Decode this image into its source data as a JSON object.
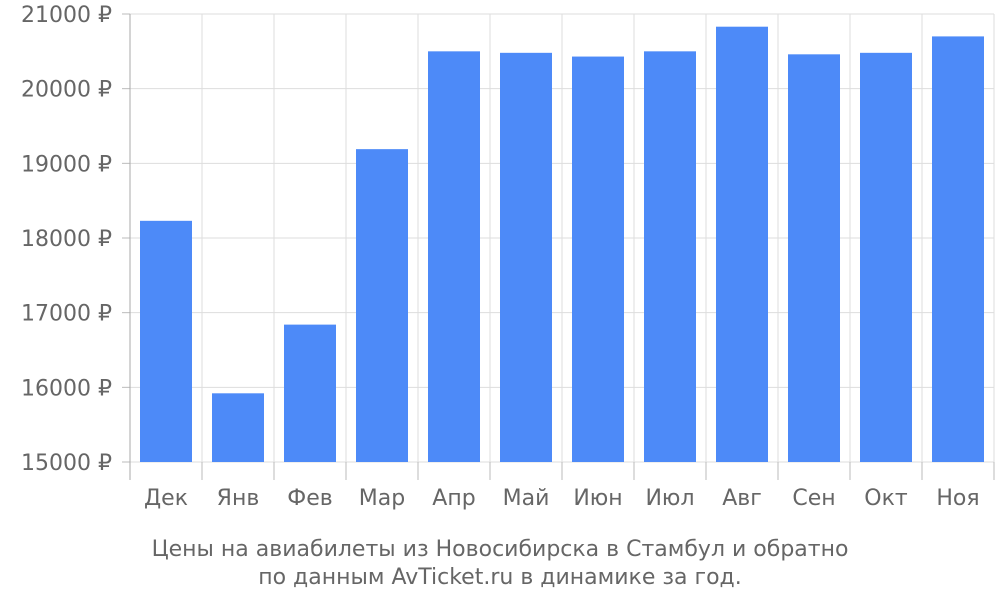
{
  "chart_data": {
    "type": "bar",
    "categories": [
      "Дек",
      "Янв",
      "Фев",
      "Мар",
      "Апр",
      "Май",
      "Июн",
      "Июл",
      "Авг",
      "Сен",
      "Окт",
      "Ноя"
    ],
    "values": [
      18230,
      15920,
      16840,
      19190,
      20500,
      20480,
      20430,
      20500,
      20830,
      20460,
      20480,
      20700
    ],
    "ylim": [
      15000,
      21000
    ],
    "yticks": [
      15000,
      16000,
      17000,
      18000,
      19000,
      20000,
      21000
    ],
    "ytick_labels": [
      "15000 ₽",
      "16000 ₽",
      "17000 ₽",
      "18000 ₽",
      "19000 ₽",
      "20000 ₽",
      "21000 ₽"
    ],
    "bar_color": "#4d8af8",
    "grid": true,
    "caption_line1": "Цены на авиабилеты из Новосибирска в Стамбул и обратно",
    "caption_line2": "по данным AvTicket.ru в динамике за год."
  }
}
